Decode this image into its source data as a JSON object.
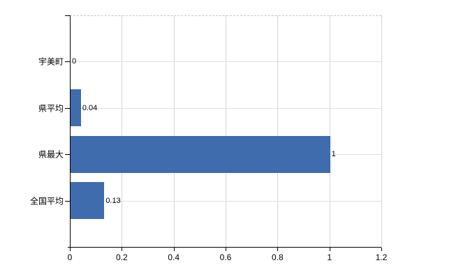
{
  "chart_data": {
    "type": "bar",
    "orientation": "horizontal",
    "title": "",
    "xlabel": "",
    "ylabel": "",
    "categories": [
      "宇美町",
      "県平均",
      "県最大",
      "全国平均"
    ],
    "values": [
      0,
      0.04,
      1,
      0.13
    ],
    "value_labels": [
      "0",
      "0.04",
      "1",
      "0.13"
    ],
    "x_ticks": [
      0,
      0.2,
      0.4,
      0.6,
      0.8,
      1,
      1.2
    ],
    "x_tick_labels": [
      "0",
      "0.2",
      "0.4",
      "0.6",
      "0.8",
      "1",
      "1.2"
    ],
    "xlim": [
      0,
      1.2
    ],
    "grid": true,
    "legend_position": "none",
    "bar_color": "#3e6cad"
  },
  "colors": {
    "bar": "#3e6cad",
    "axis": "#000000",
    "gridline_vertical": "#d7d4d8",
    "gridline_horizontal": "#dce3db",
    "plot_top_border": "#c9c9c9",
    "text": "#000000",
    "background": "#ffffff"
  }
}
